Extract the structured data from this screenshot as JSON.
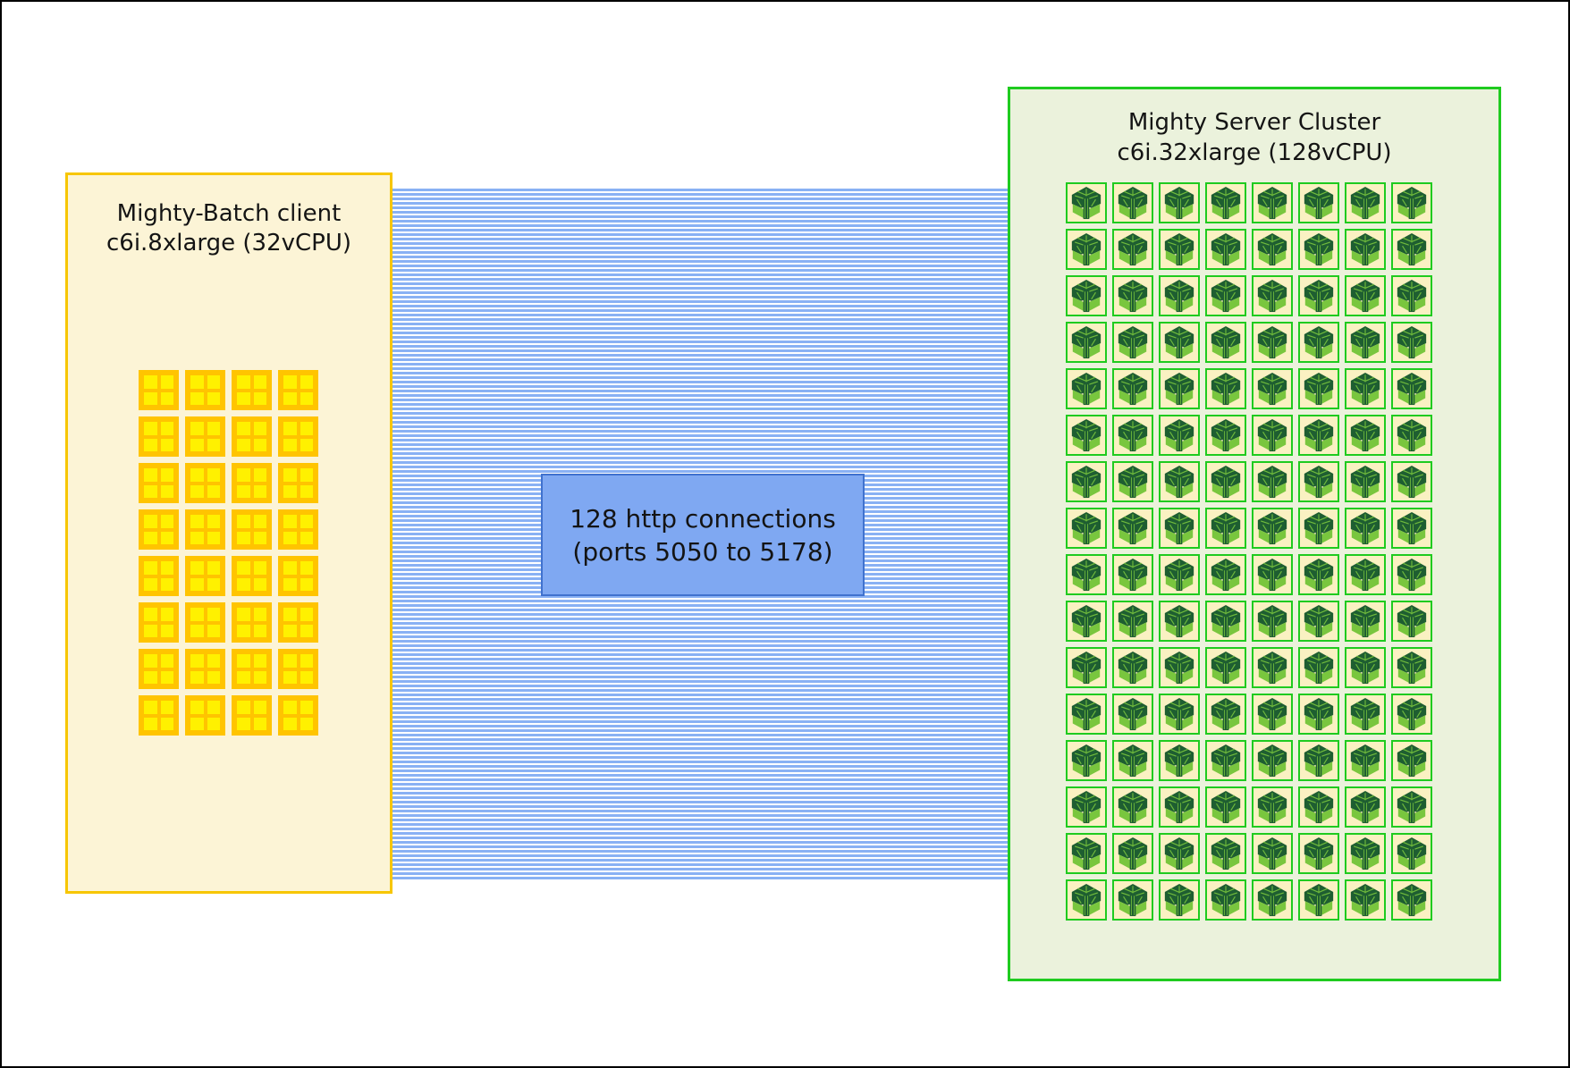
{
  "client": {
    "title_lines": [
      "Mighty-Batch client",
      "c6i.8xlarge (32vCPU)"
    ],
    "vcpu_count": 32,
    "grid_columns": 4,
    "icon": "cpu-chip-icon"
  },
  "connections": {
    "label_lines": [
      "128 http connections",
      "(ports 5050 to 5178)"
    ],
    "count": 128,
    "port_from": 5050,
    "port_to": 5178
  },
  "server": {
    "title_lines": [
      "Mighty Server Cluster",
      "c6i.32xlarge (128vCPU)"
    ],
    "vcpu_count": 128,
    "grid_columns": 8,
    "icon": "mighty-tree-icon"
  },
  "colors": {
    "text": "#141414",
    "client-bg": "#FCF4D6",
    "client-border": "#F7C600",
    "cpu-gold": "#FFC400",
    "cpu-yellow": "#FFF100",
    "stripe-blue": "#89B1F4",
    "label-bg": "#7FA8F2",
    "label-border": "#4072CE",
    "server-bg": "#EBF2DC",
    "server-border": "#1FCB1F",
    "tile-bg": "#FAF1C2",
    "tree-dark": "#1E5E31",
    "tree-lime": "#79C63E"
  }
}
